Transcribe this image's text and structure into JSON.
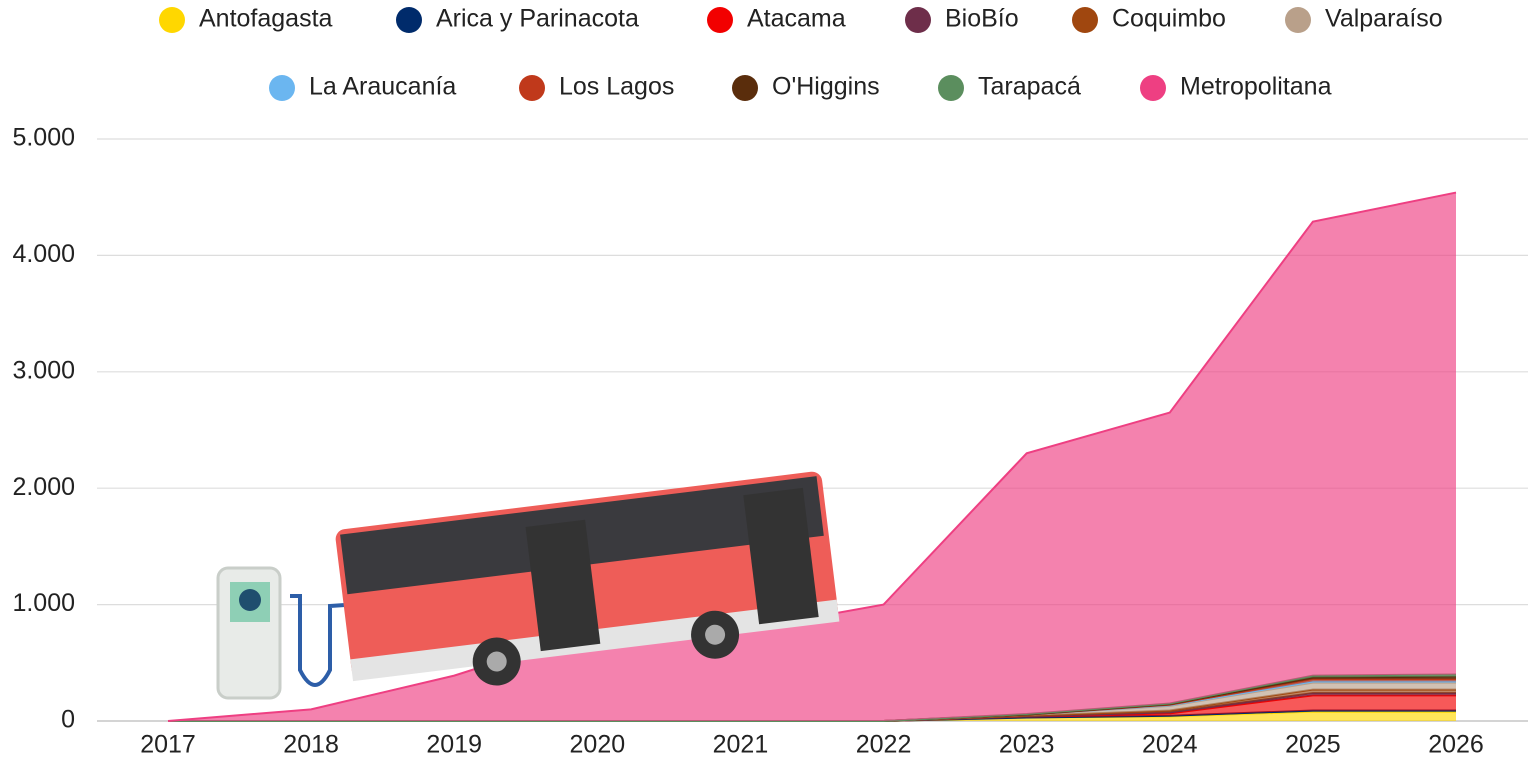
{
  "chart_data": {
    "type": "stacked_area",
    "categories": [
      "2017",
      "2018",
      "2019",
      "2020",
      "2021",
      "2022",
      "2023",
      "2024",
      "2025",
      "2026"
    ],
    "series": [
      {
        "name": "Antofagasta",
        "color": "#FFD700",
        "values": [
          0,
          0,
          0,
          0,
          0,
          0,
          30,
          40,
          80,
          80
        ]
      },
      {
        "name": "Arica y Parinacota",
        "color": "#002B6B",
        "values": [
          0,
          0,
          0,
          0,
          0,
          0,
          0,
          5,
          10,
          10
        ]
      },
      {
        "name": "Atacama",
        "color": "#F20000",
        "values": [
          0,
          0,
          0,
          0,
          0,
          0,
          10,
          20,
          130,
          130
        ]
      },
      {
        "name": "BioBío",
        "color": "#6E2E4A",
        "values": [
          0,
          0,
          0,
          0,
          0,
          0,
          0,
          10,
          20,
          20
        ]
      },
      {
        "name": "Coquimbo",
        "color": "#A0470F",
        "values": [
          0,
          0,
          0,
          0,
          0,
          0,
          5,
          15,
          30,
          30
        ]
      },
      {
        "name": "Valparaíso",
        "color": "#B9A08A",
        "values": [
          0,
          0,
          0,
          0,
          0,
          0,
          10,
          40,
          60,
          60
        ]
      },
      {
        "name": "La Araucanía",
        "color": "#6BB6F0",
        "values": [
          0,
          0,
          0,
          0,
          0,
          0,
          0,
          5,
          10,
          10
        ]
      },
      {
        "name": "Los Lagos",
        "color": "#C0391B",
        "values": [
          0,
          0,
          0,
          0,
          0,
          0,
          0,
          5,
          20,
          20
        ]
      },
      {
        "name": "O'Higgins",
        "color": "#5A2D0C",
        "values": [
          0,
          0,
          0,
          0,
          0,
          0,
          0,
          5,
          15,
          20
        ]
      },
      {
        "name": "Tarapacá",
        "color": "#5B8E5E",
        "values": [
          0,
          0,
          0,
          0,
          0,
          0,
          5,
          5,
          15,
          20
        ]
      },
      {
        "name": "Metropolitana",
        "color": "#EE3F82",
        "values": [
          0,
          100,
          390,
          780,
          780,
          1000,
          2240,
          2500,
          3900,
          4140
        ]
      }
    ],
    "ylim": [
      0,
      5000
    ],
    "yticks": [
      0,
      {
        "value": 1000,
        "label": "1.000"
      },
      {
        "value": 2000,
        "label": "2.000"
      },
      {
        "value": 3000,
        "label": "3.000"
      },
      {
        "value": 4000,
        "label": "4.000"
      },
      {
        "value": 5000,
        "label": "5.000"
      }
    ],
    "grid": true
  }
}
